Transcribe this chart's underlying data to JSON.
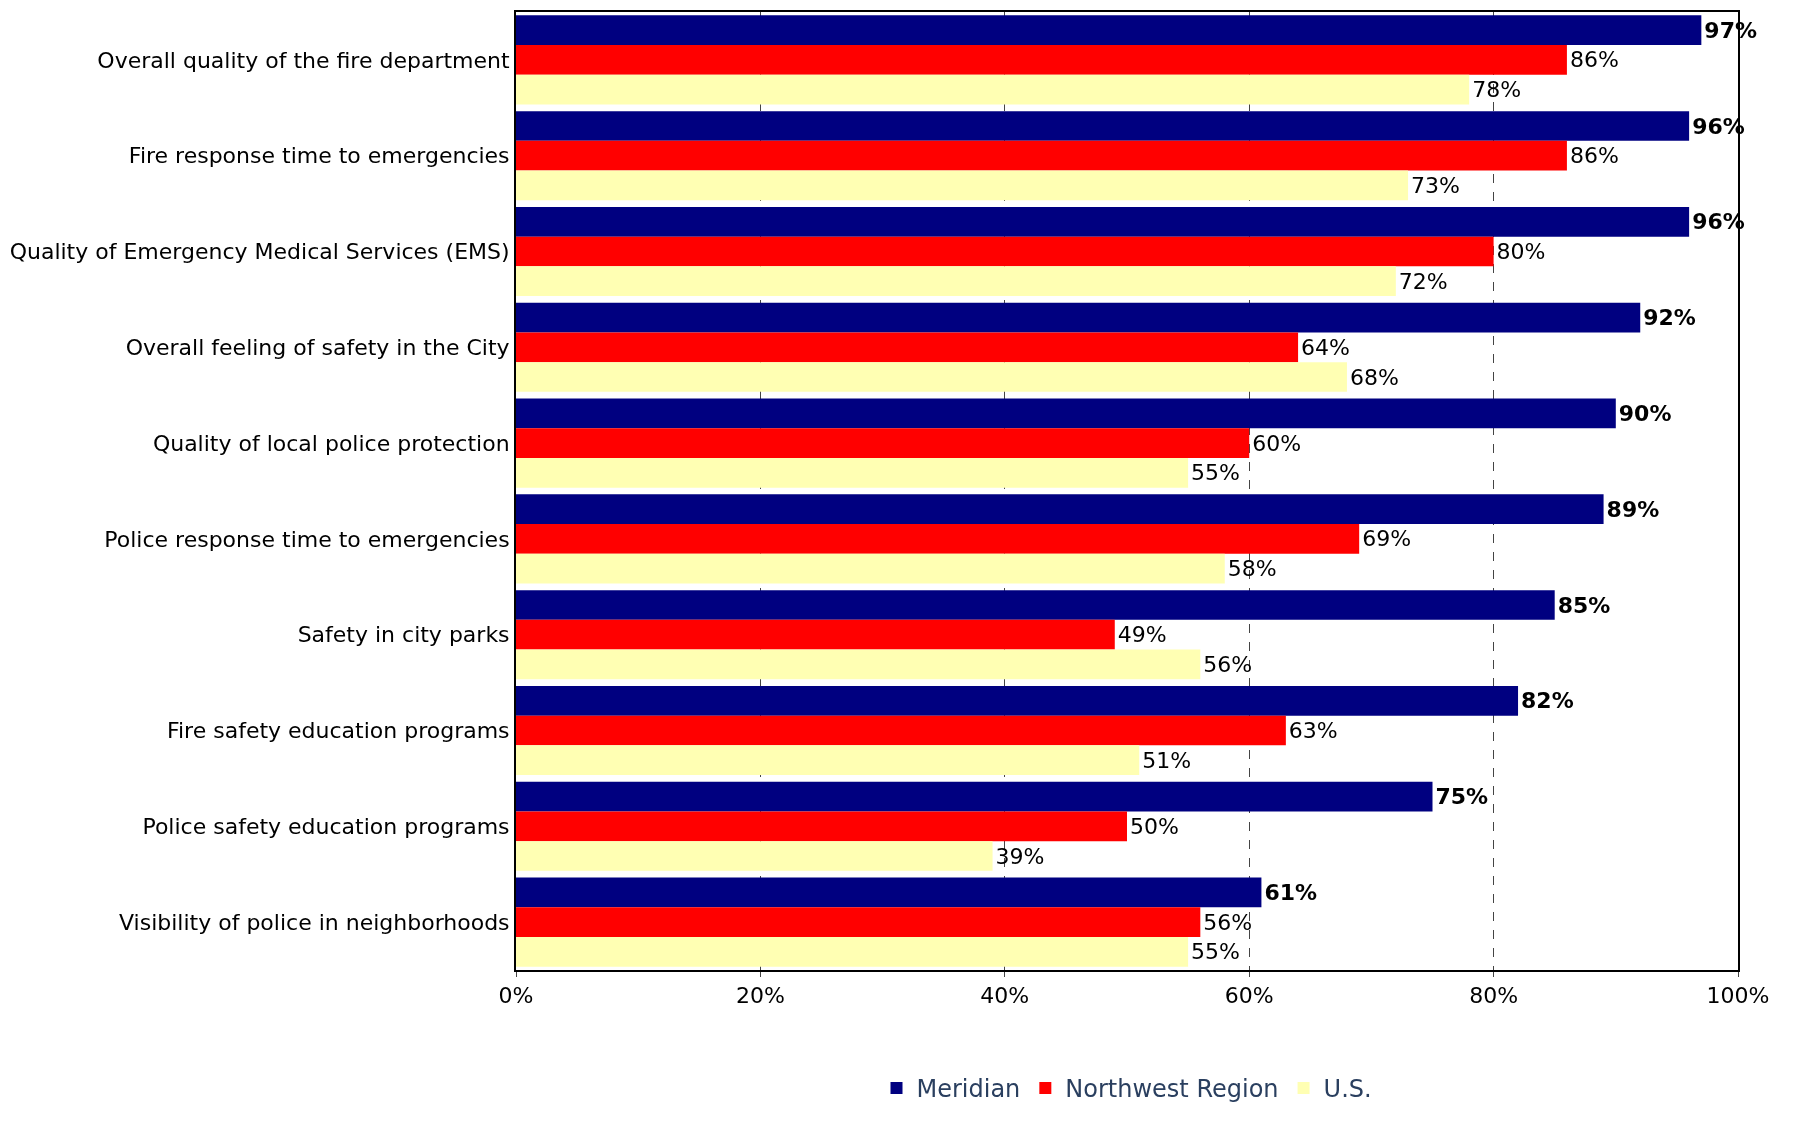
{
  "chart_data": {
    "type": "bar",
    "orientation": "horizontal",
    "categories": [
      "Overall quality of the fire department",
      "Fire response time to emergencies",
      "Quality of Emergency Medical Services (EMS)",
      "Overall feeling of safety in the City",
      "Quality of local police protection",
      "Police response time to emergencies",
      "Safety in city parks",
      "Fire safety education programs",
      "Police safety education programs",
      "Visibility of police in neighborhoods"
    ],
    "series": [
      {
        "name": "Meridian",
        "color": "#000080",
        "values": [
          97,
          96,
          96,
          92,
          90,
          89,
          85,
          82,
          75,
          61
        ],
        "value_labels": [
          "97%",
          "96%",
          "96%",
          "92%",
          "90%",
          "89%",
          "85%",
          "82%",
          "75%",
          "61%"
        ]
      },
      {
        "name": "Northwest Region",
        "color": "#ff0000",
        "values": [
          86,
          86,
          80,
          64,
          60,
          69,
          49,
          63,
          50,
          56
        ],
        "value_labels": [
          "86%",
          "86%",
          "80%",
          "64%",
          "60%",
          "69%",
          "49%",
          "63%",
          "50%",
          "56%"
        ]
      },
      {
        "name": "U.S.",
        "color": "#ffffb3",
        "values": [
          78,
          73,
          72,
          68,
          55,
          58,
          56,
          51,
          39,
          55
        ],
        "value_labels": [
          "78%",
          "73%",
          "72%",
          "68%",
          "55%",
          "58%",
          "56%",
          "51%",
          "39%",
          "55%"
        ]
      }
    ],
    "xlim": [
      0,
      100
    ],
    "xticks": [
      {
        "value": 0,
        "label": "0%"
      },
      {
        "value": 20,
        "label": "20%"
      },
      {
        "value": 40,
        "label": "40%"
      },
      {
        "value": 60,
        "label": "60%"
      },
      {
        "value": 80,
        "label": "80%"
      },
      {
        "value": 100,
        "label": "100%"
      }
    ],
    "grid": "x",
    "legend": "bottom"
  }
}
